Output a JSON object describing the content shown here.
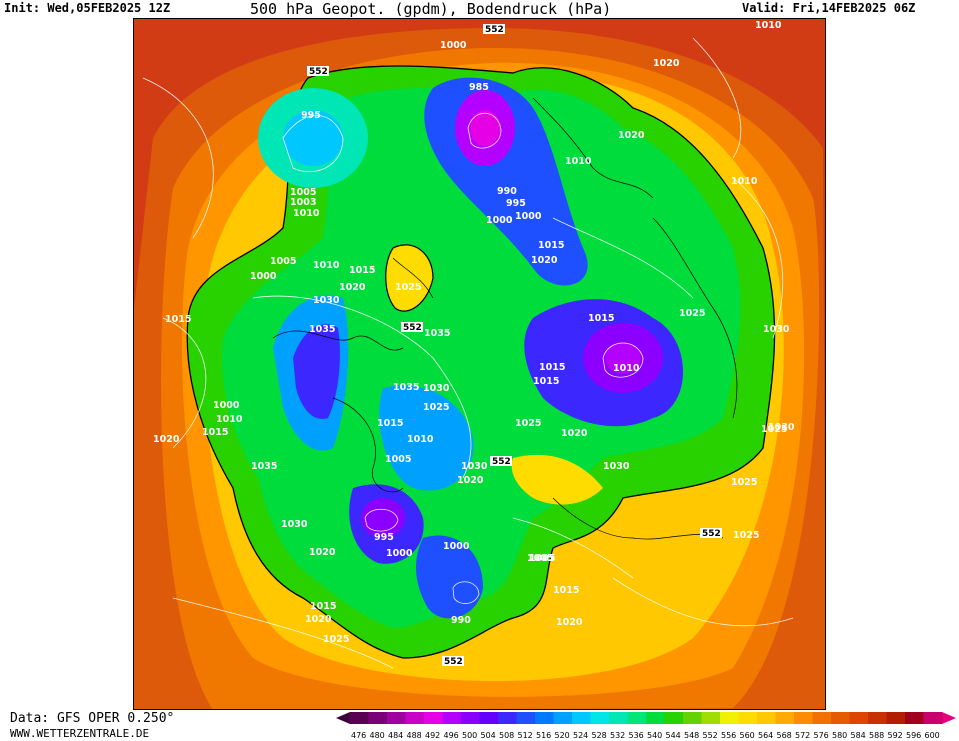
{
  "header": {
    "init": "Init: Wed,05FEB2025 12Z",
    "title": "500 hPa Geopot. (gpdm), Bodendruck (hPa)",
    "valid": "Valid: Fri,14FEB2025 06Z"
  },
  "footer": {
    "source": "Data: GFS OPER 0.250°",
    "site": "WWW.WETTERZENTRALE.DE"
  },
  "scale": {
    "values": [
      "476",
      "480",
      "484",
      "488",
      "492",
      "496",
      "500",
      "504",
      "508",
      "512",
      "516",
      "520",
      "524",
      "528",
      "532",
      "536",
      "540",
      "544",
      "548",
      "552",
      "556",
      "560",
      "564",
      "568",
      "572",
      "576",
      "580",
      "584",
      "588",
      "592",
      "596",
      "600"
    ],
    "colors": [
      "#5a0050",
      "#7a0078",
      "#a000a0",
      "#c800c8",
      "#e600e6",
      "#b400ff",
      "#8c00ff",
      "#6400ff",
      "#3c28ff",
      "#1e50ff",
      "#0078ff",
      "#00a0ff",
      "#00c8ff",
      "#00e6e6",
      "#00e6b4",
      "#00e678",
      "#00dc3c",
      "#28d200",
      "#64d200",
      "#a0dc00",
      "#f0f000",
      "#ffdc00",
      "#ffc800",
      "#ffaa00",
      "#ff8c00",
      "#f07000",
      "#e65a00",
      "#dc4600",
      "#c83200",
      "#b41e00",
      "#a0001e",
      "#c8006e"
    ]
  },
  "map": {
    "contour_552": "552",
    "pressure_labels": [
      "1010",
      "1000",
      "552",
      "1020",
      "552",
      "985",
      "995",
      "1020",
      "1010",
      "1010",
      "990",
      "995",
      "1000",
      "1000",
      "1005",
      "1003",
      "1010",
      "1015",
      "1020",
      "1005",
      "1010",
      "1015",
      "1025",
      "1000",
      "1030",
      "1020",
      "1015",
      "1035",
      "1035",
      "1025",
      "1015",
      "1010",
      "1030",
      "1000",
      "1010",
      "1015",
      "1020",
      "1015",
      "1035",
      "1015",
      "1015",
      "1030",
      "1025",
      "1030",
      "1025",
      "1010",
      "1005",
      "1030",
      "1020",
      "1005",
      "1035",
      "1030",
      "995",
      "1000",
      "1000",
      "1020",
      "1025",
      "1020",
      "552",
      "1005",
      "1015",
      "1015",
      "1020",
      "990",
      "1020",
      "1025",
      "1025",
      "552",
      "1030",
      "1025"
    ]
  }
}
